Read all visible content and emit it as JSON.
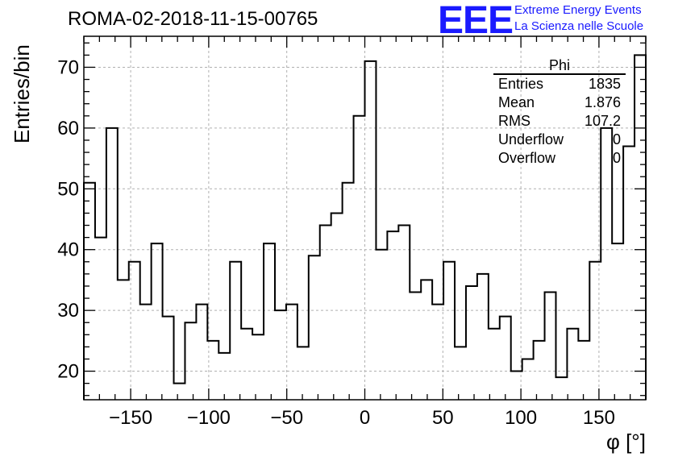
{
  "header": {
    "title": "ROMA-02-2018-11-15-00765",
    "logo": "EEE",
    "logo_line1": "Extreme Energy Events",
    "logo_line2": "La Scienza nelle Scuole"
  },
  "stats_box": {
    "name": "Phi",
    "rows": [
      {
        "label": "Entries",
        "value": "1835"
      },
      {
        "label": "Mean",
        "value": "1.876"
      },
      {
        "label": "RMS",
        "value": "107.2"
      },
      {
        "label": "Underflow",
        "value": "0"
      },
      {
        "label": "Overflow",
        "value": "0"
      }
    ]
  },
  "chart_data": {
    "type": "bar",
    "style": "step-histogram",
    "title": "ROMA-02-2018-11-15-00765",
    "xlabel": "φ [°]",
    "ylabel": "Entries/bin",
    "xlim": [
      -180,
      180
    ],
    "ylim": [
      15.3,
      75.1
    ],
    "grid": true,
    "bin_width": 7.2,
    "x_ticks": [
      -150,
      -100,
      -50,
      0,
      50,
      100,
      150
    ],
    "x_tick_labels": [
      "−150",
      "−100",
      "−50",
      "0",
      "50",
      "100",
      "150"
    ],
    "y_ticks": [
      20,
      30,
      40,
      50,
      60,
      70
    ],
    "y_tick_labels": [
      "20",
      "30",
      "40",
      "50",
      "60",
      "70"
    ],
    "values": [
      51,
      42,
      60,
      35,
      38,
      31,
      41,
      29,
      18,
      28,
      31,
      25,
      23,
      38,
      27,
      26,
      41,
      30,
      31,
      24,
      39,
      44,
      46,
      51,
      62,
      71,
      40,
      43,
      44,
      33,
      35,
      31,
      38,
      24,
      34,
      36,
      27,
      29,
      20,
      22,
      25,
      33,
      19,
      27,
      25,
      38,
      60,
      41,
      57,
      72
    ],
    "color": "#000000"
  }
}
